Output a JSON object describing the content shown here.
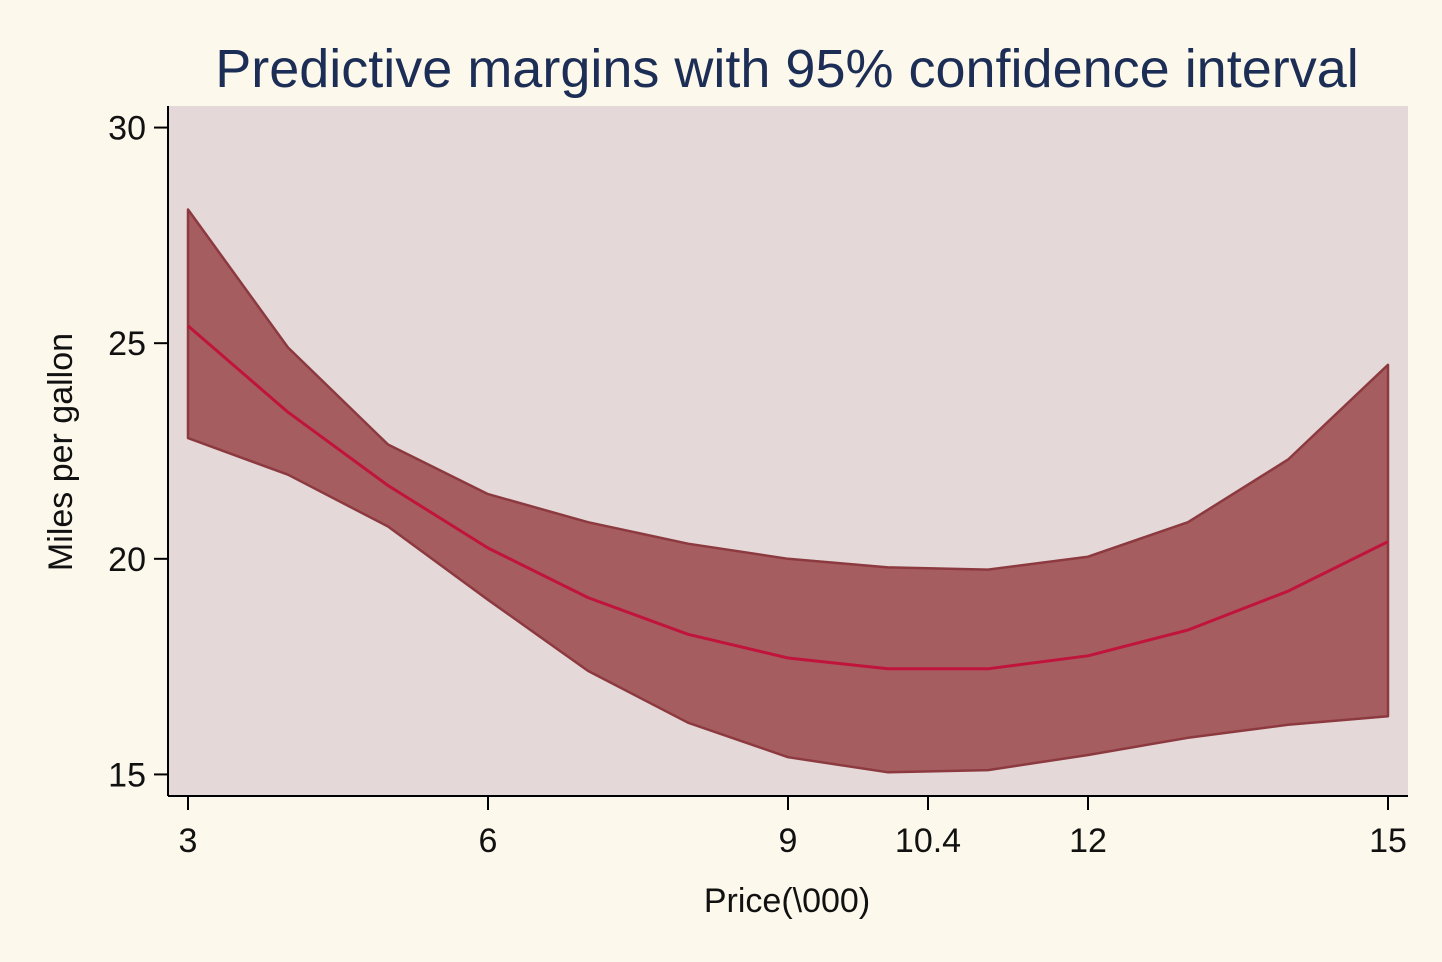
{
  "chart_data": {
    "type": "line",
    "title": "Predictive margins with 95% confidence interval",
    "xlabel": "Price(\\000)",
    "ylabel": "Miles per gallon",
    "xlim": [
      2.8,
      15.2
    ],
    "ylim": [
      14.5,
      30.5
    ],
    "x_ticks": [
      3,
      6,
      9,
      10.4,
      12,
      15
    ],
    "x_tick_labels": [
      "3",
      "6",
      "9",
      "10.4",
      "12",
      "15"
    ],
    "y_ticks": [
      15,
      20,
      25,
      30
    ],
    "y_tick_labels": [
      "15",
      "20",
      "25",
      "30"
    ],
    "grid": false,
    "colors": {
      "page_background": "#fdf8ec",
      "plot_background": "#e4d9d8",
      "band_fill": "#a65d60",
      "band_edge": "#8c3a40",
      "line": "#c0143c",
      "title": "#1c2e55"
    },
    "series": [
      {
        "x": [
          3,
          4,
          5,
          6,
          7,
          8,
          9,
          10,
          11,
          12,
          13,
          14,
          15
        ],
        "values": [
          25.4,
          23.4,
          21.7,
          20.25,
          19.1,
          18.25,
          17.7,
          17.45,
          17.45,
          17.75,
          18.35,
          19.25,
          20.4
        ],
        "lower": [
          22.8,
          21.95,
          20.75,
          19.05,
          17.4,
          16.2,
          15.4,
          15.05,
          15.1,
          15.45,
          15.85,
          16.15,
          16.35
        ],
        "upper": [
          28.1,
          24.9,
          22.65,
          21.5,
          20.85,
          20.35,
          20.0,
          19.8,
          19.75,
          20.05,
          20.85,
          22.3,
          24.5
        ]
      }
    ]
  }
}
